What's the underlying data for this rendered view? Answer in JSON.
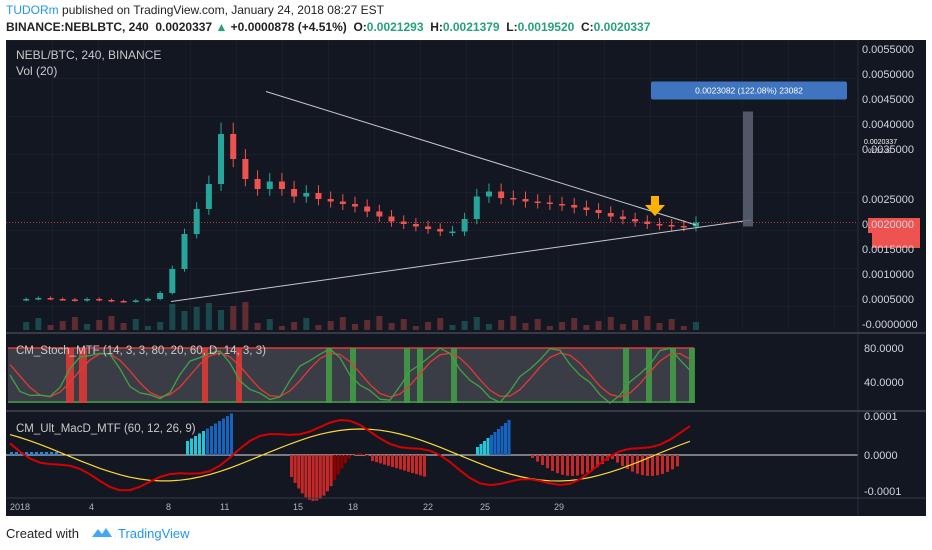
{
  "header": {
    "author": "TUDORm",
    "published_text": "published on TradingView.com, January 24, 2018 08:27 EST",
    "symbol": "BINANCE:NEBLBTC, 240",
    "last_price": "0.0020337",
    "change": "+0.0000878 (+4.51%)",
    "o_label": "O:",
    "o_value": "0.0021293",
    "h_label": "H:",
    "h_value": "0.0021379",
    "l_label": "L:",
    "l_value": "0.0019520",
    "c_label": "C:",
    "c_value": "0.0020337"
  },
  "footer": {
    "created_with": "Created with",
    "brand": "TradingView"
  },
  "chart_data": [
    {
      "type": "candlestick",
      "title": "NEBL/BTC, 240, BINANCE",
      "subtitle": "Vol (20)",
      "yticks": [
        "0.0055000",
        "0.0050000",
        "0.0045000",
        "0.0040000",
        "0.0035000",
        "0.0025000",
        "0.0020000",
        "0.0015000",
        "0.0010000",
        "0.0005000",
        "-0.0000000"
      ],
      "ylim": [
        0,
        0.0056
      ],
      "xticks": [
        "2018",
        "4",
        "8",
        "11",
        "15",
        "18",
        "22",
        "25",
        "29"
      ],
      "price_label": "0.0020337",
      "price_label_small": "02:32:33",
      "measure_label": "0.0023082 (122.08%) 23082",
      "colors": {
        "up": "#26a69a",
        "down": "#ef5350",
        "trendline": "#c8c8c8",
        "arrow": "#ffb300"
      },
      "approx_close_path": [
        0.00048,
        0.0005,
        0.00052,
        0.0005,
        0.00049,
        0.00047,
        0.0005,
        0.00048,
        0.00046,
        0.00045,
        0.00047,
        0.0005,
        0.00062,
        0.0011,
        0.0018,
        0.0023,
        0.0028,
        0.0038,
        0.0033,
        0.0029,
        0.0027,
        0.00285,
        0.0027,
        0.00255,
        0.00262,
        0.0025,
        0.00245,
        0.0024,
        0.00235,
        0.00225,
        0.00215,
        0.00205,
        0.002,
        0.00195,
        0.0019,
        0.00185,
        0.00185,
        0.0021,
        0.00255,
        0.00265,
        0.00252,
        0.0025,
        0.00245,
        0.00243,
        0.0024,
        0.00238,
        0.00233,
        0.00228,
        0.00222,
        0.00215,
        0.0021,
        0.00205,
        0.002,
        0.00198,
        0.00196,
        0.00195,
        0.00203
      ]
    },
    {
      "type": "line",
      "title": "CM_Stoch_MTF (14, 3, 3, 80, 20, 60, D, 14, 3, 3)",
      "yticks": [
        "80.0000",
        "40.0000"
      ]
    },
    {
      "type": "bar",
      "title": "CM_Ult_MacD_MTF (60, 12, 26, 9)",
      "yticks": [
        "0.0001",
        "0.0000",
        "-0.0001"
      ]
    }
  ]
}
